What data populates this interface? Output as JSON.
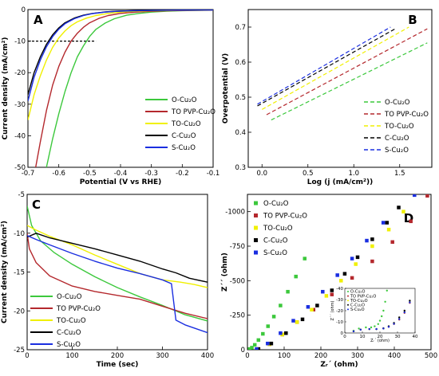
{
  "figure": {
    "series_names": [
      "O-Cu₂O",
      "TO PVP-Cu₂O",
      "TO-Cu₂O",
      "C-Cu₂O",
      "S-Cu₂O"
    ],
    "colors": {
      "O-Cu₂O": "#3cc83c",
      "TO PVP-Cu₂O": "#b4282d",
      "TO-Cu₂O": "#f0f000",
      "C-Cu₂O": "#000000",
      "S-Cu₂O": "#1a2ee0"
    }
  },
  "chart_data": [
    {
      "panel": "A",
      "type": "line",
      "xlabel": "Potential (V vs RHE)",
      "ylabel": "Current density (mA/cm²)",
      "xlim": [
        -0.7,
        -0.1
      ],
      "ylim": [
        -50,
        0
      ],
      "xticks": [
        "-0.7",
        "-0.6",
        "-0.5",
        "-0.4",
        "-0.3",
        "-0.2",
        "-0.1"
      ],
      "yticks": [
        "-50",
        "-40",
        "-30",
        "-20",
        "-10",
        "0"
      ],
      "reference_line": {
        "y": -10,
        "x": [
          -0.7,
          -0.48
        ],
        "style": "dashed"
      },
      "legend_position": "bottom-right",
      "series": [
        {
          "name": "O-Cu₂O",
          "x": [
            -0.64,
            -0.62,
            -0.6,
            -0.58,
            -0.56,
            -0.54,
            -0.52,
            -0.5,
            -0.48,
            -0.45,
            -0.42,
            -0.38,
            -0.34,
            -0.3,
            -0.25,
            -0.2,
            -0.15,
            -0.1
          ],
          "y": [
            -50,
            -41,
            -33,
            -26,
            -20,
            -15,
            -11.5,
            -8.5,
            -6.3,
            -4.3,
            -2.9,
            -1.8,
            -1.2,
            -0.8,
            -0.5,
            -0.35,
            -0.25,
            -0.2
          ]
        },
        {
          "name": "TO PVP-Cu₂O",
          "x": [
            -0.675,
            -0.66,
            -0.64,
            -0.62,
            -0.6,
            -0.58,
            -0.56,
            -0.54,
            -0.52,
            -0.5,
            -0.47,
            -0.44,
            -0.4,
            -0.35,
            -0.3,
            -0.25,
            -0.2,
            -0.1
          ],
          "y": [
            -50,
            -42,
            -32,
            -24,
            -18,
            -13.5,
            -10,
            -7.5,
            -5.6,
            -4.2,
            -2.8,
            -1.9,
            -1.2,
            -0.8,
            -0.55,
            -0.4,
            -0.3,
            -0.2
          ]
        },
        {
          "name": "TO-Cu₂O",
          "x": [
            -0.7,
            -0.68,
            -0.66,
            -0.64,
            -0.62,
            -0.6,
            -0.58,
            -0.56,
            -0.54,
            -0.51,
            -0.48,
            -0.44,
            -0.4,
            -0.35,
            -0.3,
            -0.2,
            -0.1
          ],
          "y": [
            -35,
            -27,
            -21,
            -16,
            -12,
            -9,
            -6.8,
            -5.1,
            -3.9,
            -2.7,
            -1.9,
            -1.2,
            -0.8,
            -0.5,
            -0.35,
            -0.2,
            -0.15
          ]
        },
        {
          "name": "C-Cu₂O",
          "x": [
            -0.7,
            -0.68,
            -0.66,
            -0.64,
            -0.62,
            -0.6,
            -0.58,
            -0.55,
            -0.52,
            -0.49,
            -0.45,
            -0.41,
            -0.36,
            -0.3,
            -0.2,
            -0.1
          ],
          "y": [
            -27,
            -20,
            -15,
            -11,
            -8,
            -5.8,
            -4.2,
            -2.7,
            -1.8,
            -1.2,
            -0.75,
            -0.5,
            -0.35,
            -0.25,
            -0.15,
            -0.1
          ]
        },
        {
          "name": "S-Cu₂O",
          "x": [
            -0.7,
            -0.68,
            -0.66,
            -0.64,
            -0.62,
            -0.6,
            -0.58,
            -0.55,
            -0.52,
            -0.49,
            -0.45,
            -0.41,
            -0.36,
            -0.3,
            -0.2,
            -0.1
          ],
          "y": [
            -29,
            -21.5,
            -16,
            -11.8,
            -8.6,
            -6.2,
            -4.5,
            -2.9,
            -1.9,
            -1.25,
            -0.8,
            -0.55,
            -0.38,
            -0.27,
            -0.17,
            -0.12
          ]
        }
      ]
    },
    {
      "panel": "B",
      "type": "line",
      "xlabel": "Log (j (mA/cm²))",
      "ylabel": "Overpotential (V)",
      "xlim": [
        -0.15,
        1.85
      ],
      "ylim": [
        0.3,
        0.75
      ],
      "xticks": [
        "0.0",
        "0.5",
        "1.0",
        "1.5"
      ],
      "yticks": [
        "0.3",
        "0.4",
        "0.5",
        "0.6",
        "0.7"
      ],
      "legend_position": "bottom-right",
      "series": [
        {
          "name": "O-Cu₂O",
          "x": [
            0.1,
            1.8
          ],
          "y": [
            0.435,
            0.655
          ]
        },
        {
          "name": "TO PVP-Cu₂O",
          "x": [
            0.05,
            1.8
          ],
          "y": [
            0.45,
            0.695
          ]
        },
        {
          "name": "TO-Cu₂O",
          "x": [
            0.0,
            1.6
          ],
          "y": [
            0.465,
            0.7
          ]
        },
        {
          "name": "C-Cu₂O",
          "x": [
            -0.05,
            1.45
          ],
          "y": [
            0.475,
            0.695
          ]
        },
        {
          "name": "S-Cu₂O",
          "x": [
            -0.05,
            1.4
          ],
          "y": [
            0.48,
            0.7
          ]
        }
      ]
    },
    {
      "panel": "C",
      "type": "line",
      "xlabel": "Time (sec)",
      "ylabel": "Current density (mA/cm²)",
      "xlim": [
        0,
        400
      ],
      "ylim": [
        -25,
        -5
      ],
      "xticks": [
        "0",
        "100",
        "200",
        "300",
        "400"
      ],
      "yticks": [
        "-25",
        "-20",
        "-15",
        "-10",
        "-5"
      ],
      "legend_position": "bottom-left",
      "series": [
        {
          "name": "O-Cu₂O",
          "x": [
            0,
            10,
            30,
            60,
            100,
            150,
            200,
            250,
            300,
            350,
            400
          ],
          "y": [
            -6.5,
            -9,
            -11,
            -12.5,
            -14,
            -15.6,
            -17,
            -18.2,
            -19.3,
            -20.5,
            -21.3
          ]
        },
        {
          "name": "TO PVP-Cu₂O",
          "x": [
            0,
            5,
            20,
            50,
            100,
            150,
            200,
            250,
            300,
            350,
            400
          ],
          "y": [
            -10,
            -12,
            -13.8,
            -15.5,
            -16.8,
            -17.5,
            -18,
            -18.5,
            -19.4,
            -20.3,
            -21
          ]
        },
        {
          "name": "TO-Cu₂O",
          "x": [
            0,
            20,
            50,
            100,
            150,
            200,
            250,
            300,
            340,
            370,
            400
          ],
          "y": [
            -9,
            -9.6,
            -10.4,
            -11.5,
            -12.8,
            -14,
            -15.2,
            -16,
            -16.3,
            -16.6,
            -17
          ]
        },
        {
          "name": "C-Cu₂O",
          "x": [
            0,
            20,
            50,
            100,
            150,
            200,
            250,
            300,
            330,
            360,
            400
          ],
          "y": [
            -10.5,
            -10,
            -10.6,
            -11.3,
            -12,
            -12.8,
            -13.6,
            -14.6,
            -15.1,
            -15.8,
            -16.3
          ]
        },
        {
          "name": "S-Cu₂O",
          "x": [
            0,
            20,
            50,
            100,
            150,
            200,
            250,
            300,
            320,
            330,
            350,
            400
          ],
          "y": [
            -10.3,
            -10.8,
            -11.5,
            -12.6,
            -13.6,
            -14.5,
            -15.2,
            -16,
            -16.5,
            -21.2,
            -21.8,
            -22.8
          ]
        }
      ]
    },
    {
      "panel": "D",
      "type": "scatter",
      "xlabel": "Zᵣ´ (ohm)",
      "ylabel": "Z´´ (ohm)",
      "xlim": [
        0,
        500
      ],
      "ylim": [
        0,
        -1125
      ],
      "xticks": [
        "0",
        "100",
        "200",
        "300",
        "400",
        "500"
      ],
      "yticks": [
        "0",
        "-250",
        "-500",
        "-750",
        "-1000"
      ],
      "legend_position": "top-left",
      "series": [
        {
          "name": "O-Cu₂O",
          "x": [
            6,
            12,
            20,
            30,
            42,
            56,
            72,
            90,
            110,
            132,
            156
          ],
          "y": [
            -5,
            -15,
            -35,
            -70,
            -115,
            -170,
            -240,
            -320,
            -420,
            -530,
            -660
          ]
        },
        {
          "name": "TO PVP-Cu₂O",
          "x": [
            30,
            60,
            95,
            135,
            180,
            230,
            285,
            340,
            395,
            445,
            490
          ],
          "y": [
            -5,
            -40,
            -110,
            -200,
            -290,
            -400,
            -520,
            -640,
            -780,
            -930,
            -1115
          ]
        },
        {
          "name": "TO-Cu₂O",
          "x": [
            30,
            60,
            95,
            135,
            175,
            215,
            255,
            295,
            340,
            385,
            425
          ],
          "y": [
            -5,
            -40,
            -110,
            -200,
            -290,
            -390,
            -500,
            -620,
            -750,
            -870,
            -1000
          ]
        },
        {
          "name": "C-Cu₂O",
          "x": [
            30,
            65,
            105,
            150,
            190,
            230,
            265,
            300,
            340,
            380,
            412
          ],
          "y": [
            -5,
            -45,
            -120,
            -220,
            -320,
            -430,
            -550,
            -670,
            -800,
            -920,
            -1030
          ]
        },
        {
          "name": "S-Cu₂O",
          "x": [
            25,
            55,
            90,
            125,
            165,
            205,
            245,
            285,
            325,
            370,
            455
          ],
          "y": [
            -5,
            -45,
            -120,
            -210,
            -310,
            -420,
            -540,
            -660,
            -790,
            -920,
            -1120
          ]
        }
      ]
    },
    {
      "panel": "D-inset",
      "type": "scatter",
      "xlabel": "Zᵣ´ (ohm)",
      "ylabel": "Z´´ (ohm)",
      "xlim": [
        0,
        40
      ],
      "ylim": [
        0,
        -40
      ],
      "xticks": [
        "0",
        "10",
        "20",
        "30",
        "40"
      ],
      "yticks": [
        "0",
        "-10",
        "-20",
        "-30",
        "-40"
      ],
      "legend_position": "top-left",
      "series": [
        {
          "name": "O-Cu₂O",
          "x": [
            5,
            8,
            12,
            15,
            17,
            19,
            20,
            21,
            22,
            23,
            24
          ],
          "y": [
            -2,
            -4,
            -5,
            -5,
            -6,
            -8,
            -11,
            -15,
            -20,
            -28,
            -38
          ]
        },
        {
          "name": "TO PVP-Cu₂O",
          "x": [
            5,
            9,
            14,
            18,
            22,
            25,
            28,
            31,
            34,
            37
          ],
          "y": [
            -1.5,
            -3,
            -3.5,
            -3.5,
            -4,
            -5.5,
            -8,
            -12,
            -18,
            -27
          ]
        },
        {
          "name": "TO-Cu₂O",
          "x": [
            5,
            9,
            14,
            18,
            22,
            25,
            28,
            31,
            34,
            37
          ],
          "y": [
            -1.5,
            -3,
            -3.5,
            -3.5,
            -4,
            -5.8,
            -8.5,
            -13,
            -19,
            -28
          ]
        },
        {
          "name": "C-Cu₂O",
          "x": [
            5,
            9,
            14,
            18,
            22,
            25,
            28,
            31,
            34,
            37
          ],
          "y": [
            -1.5,
            -3,
            -3.5,
            -3.5,
            -4.2,
            -6,
            -9,
            -14,
            -20,
            -29
          ]
        },
        {
          "name": "S-Cu₂O",
          "x": [
            5,
            9,
            14,
            18,
            22,
            25,
            28,
            31,
            34,
            37
          ],
          "y": [
            -1.5,
            -3,
            -3.5,
            -3.5,
            -4,
            -5.5,
            -8.2,
            -12.5,
            -18.5,
            -27.5
          ]
        }
      ]
    }
  ]
}
